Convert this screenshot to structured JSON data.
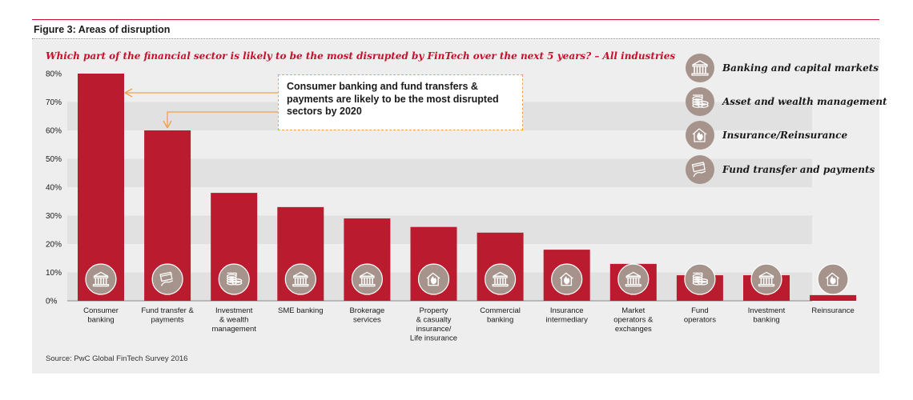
{
  "figure_title": "Figure 3: Areas of disruption",
  "question": "Which part of the financial sector is likely to be the most disrupted by FinTech over the next 5 years? – All industries",
  "callout": "Consumer banking and fund transfers & payments are likely to be the most disrupted sectors by 2020",
  "legend": [
    {
      "label": "Banking and capital markets",
      "icon": "bank-icon"
    },
    {
      "label": "Asset and wealth management",
      "icon": "coins-icon"
    },
    {
      "label": "Insurance/Reinsurance",
      "icon": "house-flame-icon"
    },
    {
      "label": "Fund transfer and payments",
      "icon": "card-hand-icon"
    }
  ],
  "source": "Source: PwC Global FinTech Survey 2016",
  "colors": {
    "accent": "#c8102e",
    "bar": "#bb1b2f",
    "icon_bg": "#a6948c",
    "callout_border": "#f0a04b",
    "panel": "#eeeeee"
  },
  "chart_data": {
    "type": "bar",
    "title": "Which part of the financial sector is likely to be the most disrupted by FinTech over the next 5 years? – All industries",
    "xlabel": "",
    "ylabel": "",
    "ylim": [
      0,
      80
    ],
    "yticks": [
      "0%",
      "10%",
      "20%",
      "30%",
      "40%",
      "50%",
      "60%",
      "70%",
      "80%"
    ],
    "grid": "alternating horizontal bands",
    "legend_position": "top-right",
    "categories": [
      "Consumer\nbanking",
      "Fund transfer &\npayments",
      "Investment\n& wealth\nmanagement",
      "SME banking",
      "Brokerage\nservices",
      "Property\n& casualty\ninsurance/\nLife insurance",
      "Commercial\nbanking",
      "Insurance\nintermediary",
      "Market\noperators &\nexchanges",
      "Fund\noperators",
      "Investment\nbanking",
      "Reinsurance"
    ],
    "values": [
      80,
      60,
      38,
      33,
      29,
      26,
      24,
      18,
      13,
      9,
      9,
      2
    ],
    "bar_icons": [
      "bank-icon",
      "card-hand-icon",
      "coins-icon",
      "bank-icon",
      "bank-icon",
      "house-flame-icon",
      "bank-icon",
      "house-flame-icon",
      "bank-icon",
      "coins-icon",
      "bank-icon",
      "house-flame-icon"
    ]
  }
}
